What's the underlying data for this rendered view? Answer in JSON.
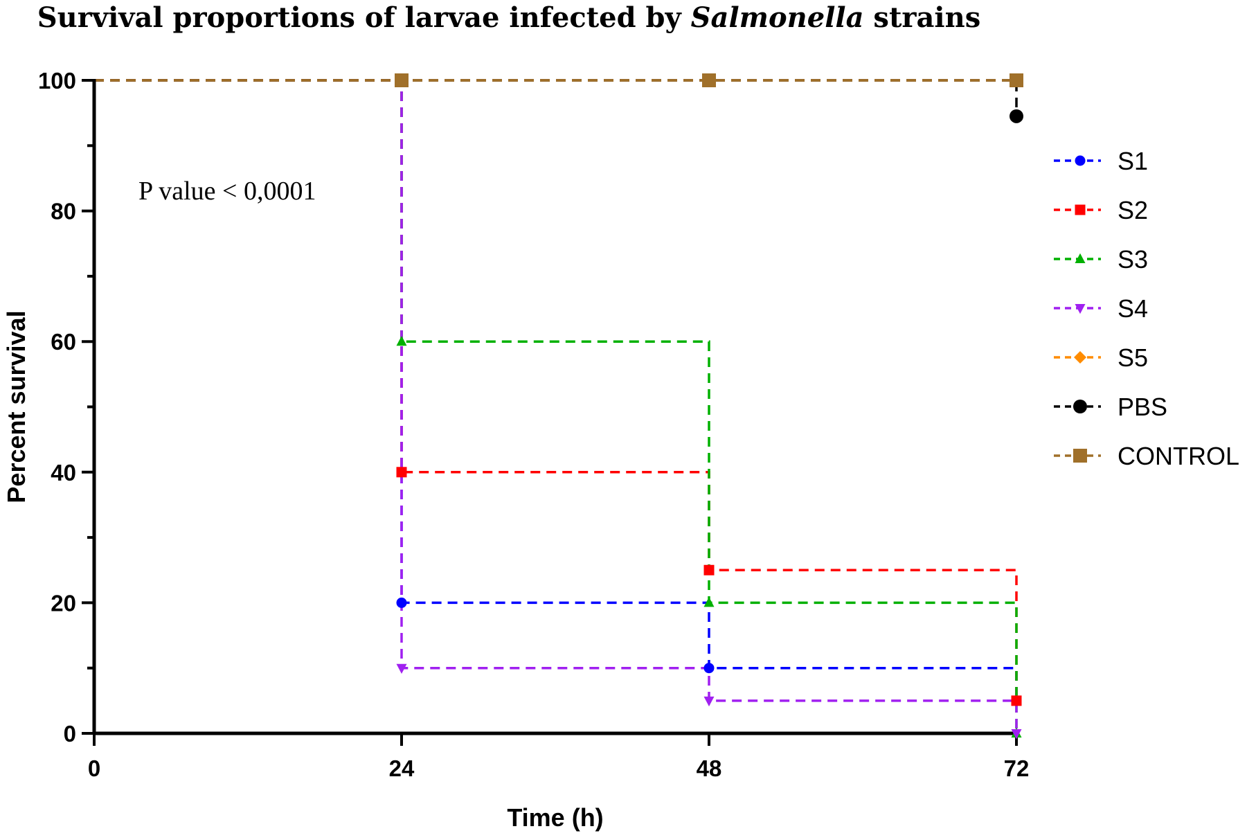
{
  "chart_data": {
    "type": "line",
    "step": true,
    "title_parts": [
      "Survival proportions of larvae infected by ",
      "Salmonella",
      " strains"
    ],
    "xlabel": "Time (h)",
    "ylabel": "Percent survival",
    "xlim": [
      0,
      72
    ],
    "ylim": [
      0,
      100
    ],
    "xticks": [
      0,
      24,
      48,
      72
    ],
    "yticks": [
      0,
      20,
      40,
      60,
      80,
      100
    ],
    "yminor_step": 10,
    "annotation": "P value  <  0,0001",
    "legend_position": "right",
    "series": [
      {
        "name": "S1",
        "color": "#0000ff",
        "marker": "circle",
        "x": [
          0,
          24,
          48,
          72
        ],
        "y": [
          100,
          20,
          10,
          5
        ]
      },
      {
        "name": "S2",
        "color": "#ff0000",
        "marker": "square",
        "x": [
          0,
          24,
          48,
          72
        ],
        "y": [
          100,
          40,
          25,
          5
        ]
      },
      {
        "name": "S3",
        "color": "#00b000",
        "marker": "triangle-up",
        "x": [
          0,
          24,
          48,
          72
        ],
        "y": [
          100,
          60,
          20,
          0
        ]
      },
      {
        "name": "S4",
        "color": "#a020f0",
        "marker": "triangle-down",
        "x": [
          0,
          24,
          48,
          72
        ],
        "y": [
          100,
          10,
          5,
          0
        ]
      },
      {
        "name": "S5",
        "color": "#ff8c00",
        "marker": "diamond",
        "x": [
          0,
          24,
          48,
          72
        ],
        "y": [
          100,
          100,
          100,
          100
        ]
      },
      {
        "name": "PBS",
        "color": "#000000",
        "marker": "circle",
        "x": [
          0,
          24,
          48,
          72
        ],
        "y": [
          100,
          100,
          100,
          94.5
        ]
      },
      {
        "name": "CONTROL",
        "color": "#a0702a",
        "marker": "square",
        "x": [
          0,
          24,
          48,
          72
        ],
        "y": [
          100,
          100,
          100,
          100
        ]
      }
    ]
  }
}
